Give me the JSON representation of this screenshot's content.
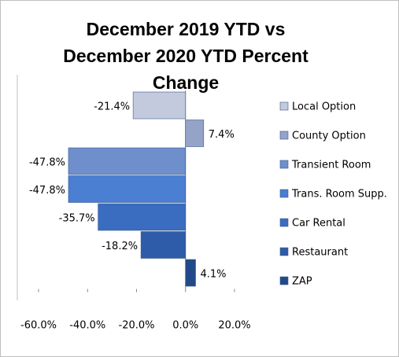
{
  "chart_data": {
    "type": "bar",
    "orientation": "horizontal",
    "title": "December 2019 YTD vs December 2020 YTD Percent Change",
    "series": [
      {
        "name": "Local Option",
        "color": "#c3cadd",
        "values": [
          -21.4
        ],
        "value_labels": [
          "-21.4%"
        ]
      },
      {
        "name": "County Option",
        "color": "#95a3c9",
        "values": [
          7.4
        ],
        "value_labels": [
          "7.4%"
        ]
      },
      {
        "name": "Transient Room",
        "color": "#6f8fcc",
        "values": [
          -47.8
        ],
        "value_labels": [
          "-47.8%"
        ]
      },
      {
        "name": "Trans. Room Supp.",
        "color": "#4a7fd2",
        "values": [
          -47.8
        ],
        "value_labels": [
          "-47.8%"
        ]
      },
      {
        "name": "Car Rental",
        "color": "#3a6dc0",
        "values": [
          -35.7
        ],
        "value_labels": [
          "-35.7%"
        ]
      },
      {
        "name": "Restaurant",
        "color": "#2f5ca8",
        "values": [
          -18.2
        ],
        "value_labels": [
          "-18.2%"
        ]
      },
      {
        "name": "ZAP",
        "color": "#234a88",
        "values": [
          4.1
        ],
        "value_labels": [
          "4.1%"
        ]
      }
    ],
    "xlim": [
      -60,
      20
    ],
    "xticks": [
      {
        "value": -60,
        "label": "-60.0%"
      },
      {
        "value": -40,
        "label": "-40.0%"
      },
      {
        "value": -20,
        "label": "-20.0%"
      },
      {
        "value": 0,
        "label": "0.0%"
      },
      {
        "value": 20,
        "label": "20.0%"
      }
    ],
    "legend": "right"
  }
}
